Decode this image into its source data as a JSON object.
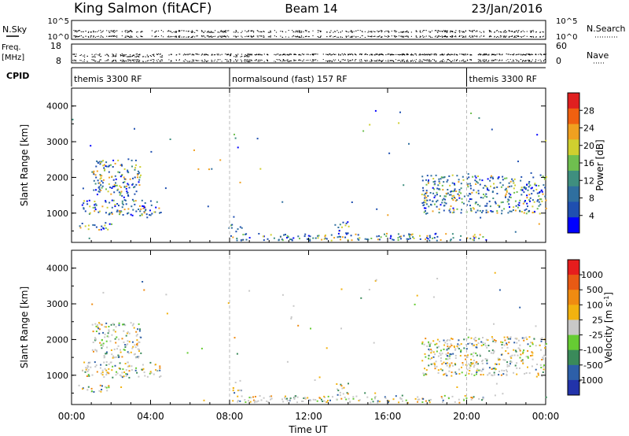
{
  "header": {
    "station": "King Salmon (fitACF)",
    "beam": "Beam 14",
    "date": "23/Jan/2016"
  },
  "top_panels": {
    "nsky_label": "N.Sky",
    "nsky_ticks": [
      "10^5",
      "10^0"
    ],
    "nsearch_label": "N.Search",
    "nsearch_ticks": [
      "10^5",
      "10^0"
    ],
    "freq_label": "Freq.",
    "freq_unit": "[MHz]",
    "freq_ticks": [
      "18",
      "8"
    ],
    "nave_label": "Nave",
    "nave_ticks": [
      "60",
      "0"
    ],
    "cpid_label": "CPID",
    "cpid_segments": [
      {
        "name": "themis 3300 RF",
        "start_hour": 0,
        "end_hour": 8
      },
      {
        "name": "normalsound (fast) 157 RF",
        "start_hour": 8,
        "end_hour": 20
      },
      {
        "name": "themis 3300 RF",
        "start_hour": 20,
        "end_hour": 24
      }
    ]
  },
  "colors": {
    "power_scale": [
      "#0000ff",
      "#1f4fb0",
      "#2f6f9f",
      "#3f8f7f",
      "#6fbf4f",
      "#cfcf2f",
      "#f0a020",
      "#f06010",
      "#e02020"
    ],
    "velocity_scale": [
      "#2233aa",
      "#2d5fa8",
      "#3a8a5a",
      "#66cc33",
      "#c8c8c8",
      "#f2b20f",
      "#ef8b11",
      "#e85a14",
      "#e61d1d"
    ]
  },
  "chart_data": [
    {
      "type": "heatmap",
      "name": "power",
      "ylabel": "Slant Range [km]",
      "yticks": [
        "4000",
        "3000",
        "2000",
        "1000"
      ],
      "ylim": [
        180,
        4500
      ],
      "xlim": [
        0,
        24
      ],
      "colorbar_label": "Power [dB]",
      "colorbar_ticks": [
        "28",
        "24",
        "20",
        "16",
        "12",
        "8",
        "4"
      ],
      "regions": [
        {
          "x": [
            0.5,
            4.5
          ],
          "y": [
            950,
            1400
          ]
        },
        {
          "x": [
            1.0,
            3.5
          ],
          "y": [
            1500,
            2500
          ]
        },
        {
          "x": [
            0.3,
            2.0
          ],
          "y": [
            550,
            750
          ]
        },
        {
          "x": [
            7.9,
            8.6
          ],
          "y": [
            500,
            700
          ]
        },
        {
          "x": [
            8.0,
            21.0
          ],
          "y": [
            250,
            450
          ]
        },
        {
          "x": [
            13.3,
            14.0
          ],
          "y": [
            450,
            800
          ]
        },
        {
          "x": [
            17.7,
            24.0
          ],
          "y": [
            1000,
            2100
          ]
        }
      ]
    },
    {
      "type": "heatmap",
      "name": "velocity",
      "ylabel": "Slant Range [km]",
      "yticks": [
        "4000",
        "3000",
        "2000",
        "1000"
      ],
      "ylim": [
        180,
        4500
      ],
      "xlim": [
        0,
        24
      ],
      "xlabel": "Time UT",
      "xticks": [
        "00:00",
        "04:00",
        "08:00",
        "12:00",
        "16:00",
        "20:00",
        "00:00"
      ],
      "colorbar_label": "Velocity [m s^-1]",
      "colorbar_ticks": [
        "1000",
        "500",
        "100",
        "25",
        "-25",
        "-100",
        "-500",
        "-1000"
      ],
      "regions": [
        {
          "x": [
            0.5,
            4.5
          ],
          "y": [
            950,
            1400
          ]
        },
        {
          "x": [
            1.0,
            3.5
          ],
          "y": [
            1500,
            2500
          ]
        },
        {
          "x": [
            0.3,
            2.0
          ],
          "y": [
            550,
            750
          ]
        },
        {
          "x": [
            7.9,
            8.6
          ],
          "y": [
            500,
            700
          ]
        },
        {
          "x": [
            8.0,
            21.0
          ],
          "y": [
            250,
            450
          ]
        },
        {
          "x": [
            13.3,
            14.0
          ],
          "y": [
            450,
            800
          ]
        },
        {
          "x": [
            17.7,
            24.0
          ],
          "y": [
            1000,
            2100
          ]
        }
      ]
    }
  ]
}
